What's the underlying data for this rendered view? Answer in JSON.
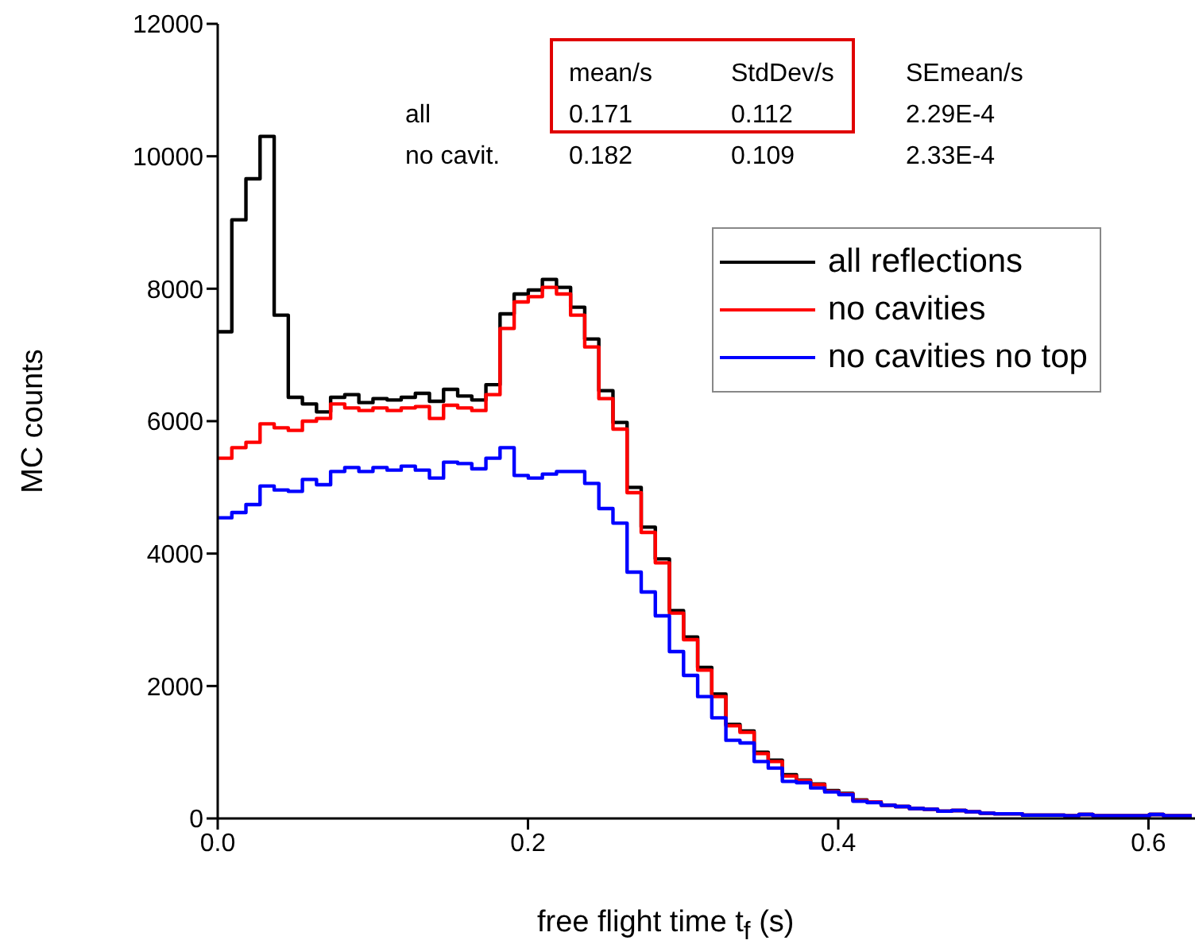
{
  "chart_data": {
    "type": "histogram",
    "xlabel": "free flight time t$_{f}$ (s)",
    "ylabel": "MC counts",
    "bins": [
      0,
      0.0091,
      0.0182,
      0.0273,
      0.0364,
      0.0455,
      0.0546,
      0.0637,
      0.0728,
      0.0819,
      0.091,
      0.1001,
      0.1092,
      0.1183,
      0.1274,
      0.1365,
      0.1456,
      0.1547,
      0.1638,
      0.1729,
      0.182,
      0.1911,
      0.2002,
      0.2093,
      0.2184,
      0.2275,
      0.2366,
      0.2457,
      0.2548,
      0.2639,
      0.273,
      0.2821,
      0.2912,
      0.3003,
      0.3094,
      0.3185,
      0.3276,
      0.3367,
      0.3458,
      0.3549,
      0.364,
      0.3731,
      0.3822,
      0.3913,
      0.4004,
      0.4095,
      0.4186,
      0.4277,
      0.4368,
      0.4459,
      0.455,
      0.4641,
      0.4732,
      0.4823,
      0.4914,
      0.5005,
      0.5096,
      0.5187,
      0.5278,
      0.5369,
      0.546,
      0.5551,
      0.5642,
      0.5733,
      0.5824,
      0.5915,
      0.6006,
      0.6097,
      0.6188,
      0.6279
    ],
    "series": [
      {
        "name": "all reflections",
        "color": "#000000",
        "values": [
          7350,
          9040,
          9660,
          10300,
          7600,
          6360,
          6260,
          6140,
          6360,
          6400,
          6280,
          6340,
          6320,
          6360,
          6420,
          6300,
          6480,
          6380,
          6320,
          6550,
          7620,
          7920,
          7980,
          8140,
          8020,
          7720,
          7240,
          6460,
          5980,
          5000,
          4400,
          3920,
          3140,
          2740,
          2280,
          1880,
          1420,
          1320,
          1000,
          880,
          660,
          580,
          520,
          420,
          380,
          280,
          250,
          200,
          180,
          150,
          140,
          110,
          120,
          100,
          80,
          70,
          70,
          50,
          50,
          50,
          40,
          60,
          40,
          40,
          40,
          40,
          60,
          40,
          40
        ]
      },
      {
        "name": "no cavities",
        "color": "#ff0000",
        "values": [
          5440,
          5600,
          5680,
          5960,
          5900,
          5860,
          6000,
          6040,
          6260,
          6200,
          6160,
          6200,
          6160,
          6200,
          6220,
          6040,
          6240,
          6200,
          6160,
          6400,
          7400,
          7800,
          7880,
          8020,
          7920,
          7600,
          7120,
          6340,
          5880,
          4920,
          4320,
          3860,
          3100,
          2700,
          2240,
          1840,
          1400,
          1300,
          980,
          860,
          640,
          570,
          510,
          410,
          370,
          270,
          250,
          200,
          180,
          150,
          140,
          110,
          120,
          100,
          80,
          70,
          70,
          50,
          50,
          50,
          40,
          60,
          40,
          40,
          40,
          40,
          60,
          40,
          40
        ]
      },
      {
        "name": "no cavities no top",
        "color": "#0000ff",
        "values": [
          4540,
          4620,
          4740,
          5020,
          4960,
          4940,
          5120,
          5040,
          5240,
          5300,
          5240,
          5300,
          5260,
          5320,
          5260,
          5140,
          5380,
          5360,
          5280,
          5440,
          5600,
          5180,
          5140,
          5200,
          5240,
          5240,
          5060,
          4680,
          4460,
          3720,
          3420,
          3060,
          2520,
          2160,
          1840,
          1520,
          1180,
          1140,
          860,
          760,
          560,
          540,
          460,
          400,
          360,
          260,
          240,
          200,
          180,
          150,
          140,
          110,
          120,
          100,
          80,
          70,
          70,
          50,
          50,
          50,
          40,
          60,
          40,
          40,
          40,
          40,
          60,
          40,
          40
        ]
      }
    ],
    "xlim": [
      0,
      0.63
    ],
    "xticks": [
      {
        "value": 0,
        "label": "0.0"
      },
      {
        "value": 0.2,
        "label": "0.2"
      },
      {
        "value": 0.4,
        "label": "0.4"
      },
      {
        "value": 0.6,
        "label": "0.6"
      }
    ],
    "ylim": [
      0,
      12000
    ],
    "yticks": [
      0,
      2000,
      4000,
      6000,
      8000,
      10000,
      12000
    ],
    "legend": "top right",
    "grid": false,
    "annotations": [
      "mean/s",
      "StdDev/s",
      "SEmean/s",
      "all",
      "0.171",
      "0.112",
      "2.29E-4",
      "no cavit.",
      "0.182",
      "0.109",
      "2.33E-4"
    ]
  }
}
